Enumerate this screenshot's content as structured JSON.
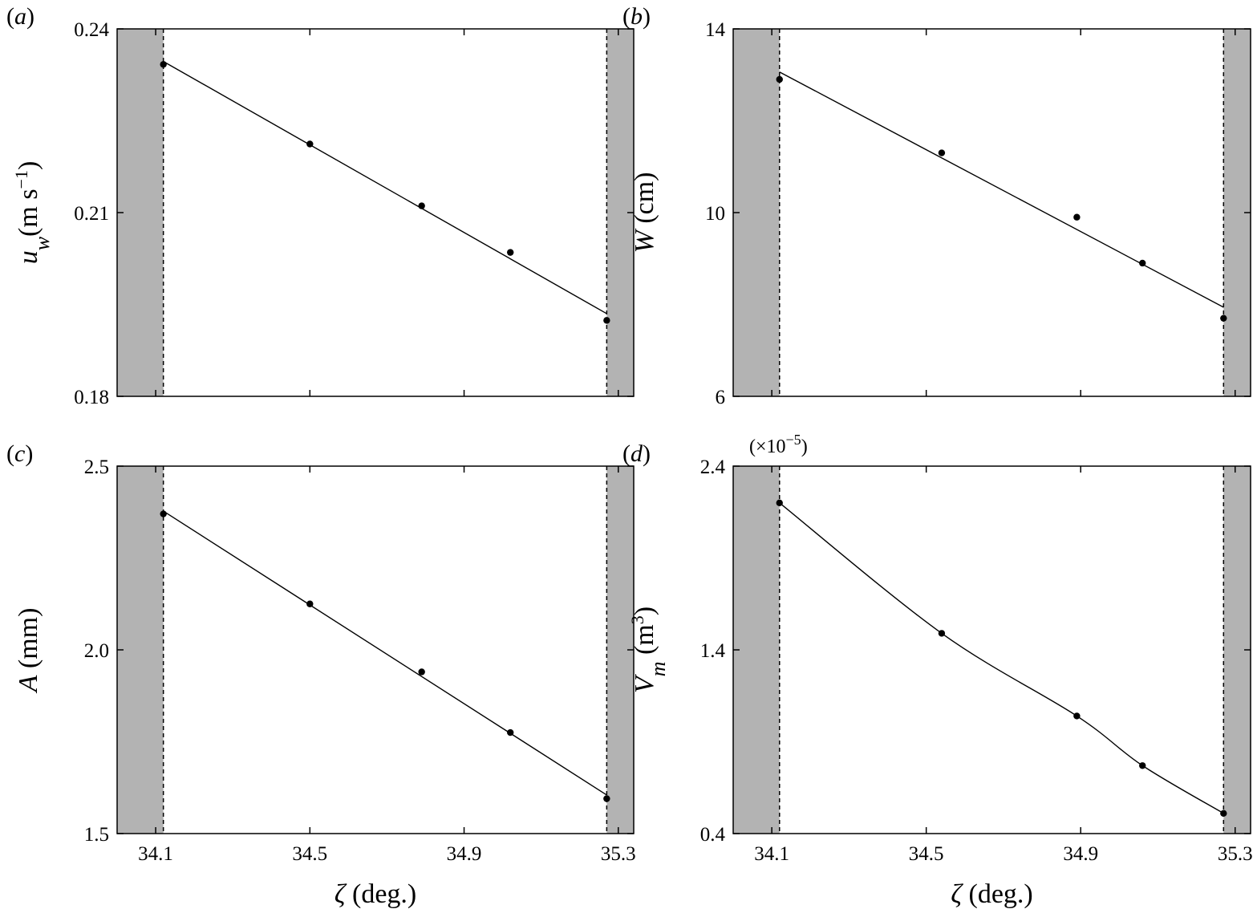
{
  "colors": {
    "background": "#ffffff",
    "shaded_region": "#b3b3b3",
    "line": "#000000",
    "marker": "#000000"
  },
  "chart_data": [
    {
      "type": "line",
      "panel_label": "(a)",
      "title": "",
      "xlabel": "",
      "ylabel": "u_w(m s^-1)",
      "ylabel_parts": {
        "symbol": "u",
        "subscript": "w",
        "unit_prefix": "(m s",
        "unit_exp": "−1",
        "unit_suffix": ")"
      },
      "xlim": [
        34.0,
        35.34
      ],
      "ylim": [
        0.18,
        0.24
      ],
      "x_ticks": [
        34.1,
        34.5,
        34.9,
        35.3
      ],
      "x_tick_labels": [],
      "y_ticks": [
        0.18,
        0.21,
        0.24
      ],
      "y_tick_labels": [
        "0.18",
        "0.21",
        "0.24"
      ],
      "shaded_regions": [
        [
          34.0,
          34.12
        ],
        [
          35.27,
          35.34
        ]
      ],
      "dashed_verticals": [
        34.12,
        35.27
      ],
      "series": [
        {
          "x": [
            34.12,
            34.5,
            34.79,
            35.02,
            35.27
          ],
          "y": [
            0.2342,
            0.2212,
            0.2111,
            0.2035,
            0.1924
          ],
          "markers": true,
          "line": true
        }
      ],
      "grid": false
    },
    {
      "type": "line",
      "panel_label": "(b)",
      "title": "",
      "xlabel": "",
      "ylabel": "W (cm)",
      "ylabel_parts": {
        "symbol": "W",
        "unit": " (cm)"
      },
      "xlim": [
        34.0,
        35.34
      ],
      "ylim": [
        6,
        14
      ],
      "x_ticks": [
        34.1,
        34.5,
        34.9,
        35.3
      ],
      "x_tick_labels": [],
      "y_ticks": [
        6,
        10,
        14
      ],
      "y_tick_labels": [
        "6",
        "10",
        "14"
      ],
      "shaded_regions": [
        [
          34.0,
          34.12
        ],
        [
          35.27,
          35.34
        ]
      ],
      "dashed_verticals": [
        34.12,
        35.27
      ],
      "series": [
        {
          "x": [
            34.12,
            34.54,
            34.89,
            35.06,
            35.27
          ],
          "y": [
            12.9,
            11.3,
            9.9,
            8.9,
            7.7
          ],
          "markers": true,
          "line": true
        }
      ],
      "grid": false
    },
    {
      "type": "line",
      "panel_label": "(c)",
      "title": "",
      "xlabel": "ζ (deg.)",
      "xlabel_parts": {
        "symbol": "ζ",
        "unit": " (deg.)"
      },
      "ylabel": "A (mm)",
      "ylabel_parts": {
        "symbol": "A",
        "unit": " (mm)"
      },
      "xlim": [
        34.0,
        35.34
      ],
      "ylim": [
        1.5,
        2.5
      ],
      "x_ticks": [
        34.1,
        34.5,
        34.9,
        35.3
      ],
      "x_tick_labels": [
        "34.1",
        "34.5",
        "34.9",
        "35.3"
      ],
      "y_ticks": [
        1.5,
        2.0,
        2.5
      ],
      "y_tick_labels": [
        "1.5",
        "2.0",
        "2.5"
      ],
      "shaded_regions": [
        [
          34.0,
          34.12
        ],
        [
          35.27,
          35.34
        ]
      ],
      "dashed_verticals": [
        34.12,
        35.27
      ],
      "series": [
        {
          "x": [
            34.12,
            34.5,
            34.79,
            35.02,
            35.27
          ],
          "y": [
            2.37,
            2.125,
            1.94,
            1.775,
            1.595
          ],
          "markers": true,
          "line": true
        }
      ],
      "grid": false
    },
    {
      "type": "line",
      "panel_label": "(d)",
      "title": "",
      "xlabel": "ζ (deg.)",
      "xlabel_parts": {
        "symbol": "ζ",
        "unit": " (deg.)"
      },
      "ylabel": "V_m (m^3)",
      "ylabel_parts": {
        "symbol": "V",
        "subscript": "m",
        "unit_prefix": " (m",
        "unit_exp": "3",
        "unit_suffix": ")"
      },
      "multiplier_label": {
        "prefix": "(×10",
        "exp": "−5",
        "suffix": ")"
      },
      "xlim": [
        34.0,
        35.34
      ],
      "ylim": [
        0.4,
        2.4
      ],
      "x_ticks": [
        34.1,
        34.5,
        34.9,
        35.3
      ],
      "x_tick_labels": [
        "34.1",
        "34.5",
        "34.9",
        "35.3"
      ],
      "y_ticks": [
        0.4,
        1.4,
        2.4
      ],
      "y_tick_labels": [
        "0.4",
        "1.4",
        "2.4"
      ],
      "shaded_regions": [
        [
          34.0,
          34.12
        ],
        [
          35.27,
          35.34
        ]
      ],
      "dashed_verticals": [
        34.12,
        35.27
      ],
      "series": [
        {
          "x": [
            34.12,
            34.54,
            34.89,
            35.06,
            35.27
          ],
          "y": [
            2.2,
            1.49,
            1.04,
            0.77,
            0.51
          ],
          "markers": true,
          "line": true,
          "curve": "smooth"
        }
      ],
      "grid": false
    }
  ]
}
